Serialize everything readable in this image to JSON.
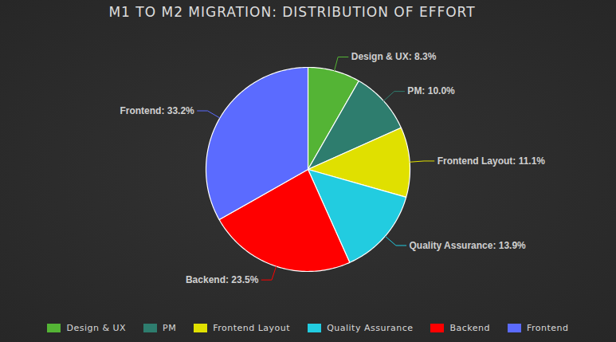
{
  "chart_data": {
    "type": "pie",
    "title": "M1 TO M2 MIGRATION: DISTRIBUTION OF EFFORT",
    "categories": [
      "Design & UX",
      "PM",
      "Frontend Layout",
      "Quality Assurance",
      "Backend",
      "Frontend"
    ],
    "values": [
      8.3,
      10.0,
      11.1,
      13.9,
      23.5,
      33.2
    ],
    "value_labels": [
      "Design & UX: 8.3%",
      "PM: 10.0%",
      "Frontend Layout: 11.1%",
      "Quality Assurance: 13.9%",
      "Backend: 23.5%",
      "Frontend: 33.2%"
    ],
    "colors": [
      "#54b435",
      "#2e7d6e",
      "#e0e000",
      "#22cce0",
      "#ff0000",
      "#5b6bff"
    ],
    "data_labels": true,
    "legend": "bottom"
  }
}
